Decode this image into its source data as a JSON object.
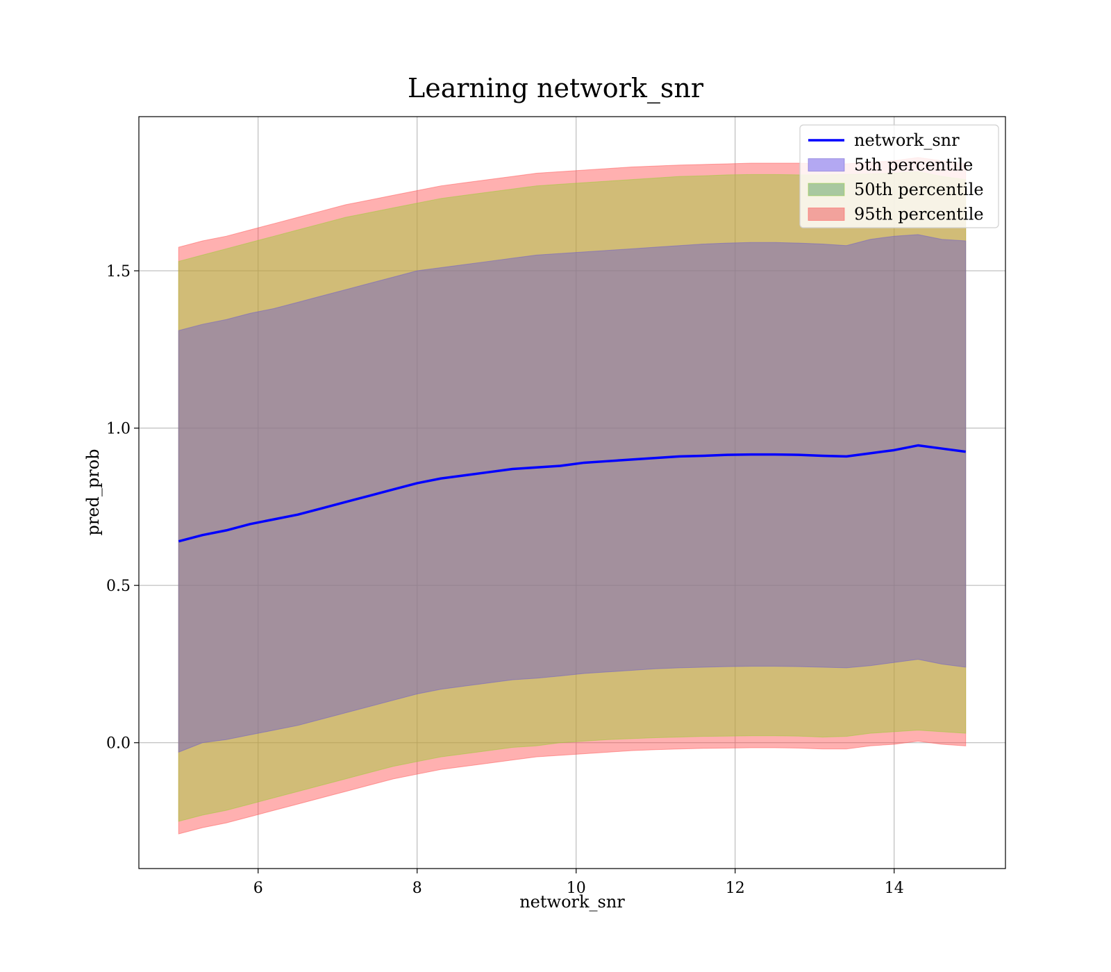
{
  "chart_data": {
    "type": "area",
    "title": "Learning network_snr",
    "xlabel": "network_snr",
    "ylabel": "pred_prob",
    "xlim": [
      4.5,
      15.4
    ],
    "ylim": [
      -0.4,
      1.99
    ],
    "xticks": [
      6,
      8,
      10,
      12,
      14
    ],
    "xtick_labels": [
      "6",
      "8",
      "10",
      "12",
      "14"
    ],
    "yticks": [
      0.0,
      0.5,
      1.0,
      1.5
    ],
    "ytick_labels": [
      "0.0",
      "0.5",
      "1.0",
      "1.5"
    ],
    "grid": true,
    "legend_position": "upper right",
    "x": [
      5.0,
      5.3,
      5.6,
      5.9,
      6.2,
      6.5,
      6.8,
      7.1,
      7.4,
      7.7,
      8.0,
      8.3,
      8.6,
      8.9,
      9.2,
      9.5,
      9.8,
      10.1,
      10.4,
      10.7,
      11.0,
      11.3,
      11.6,
      11.9,
      12.2,
      12.5,
      12.8,
      13.1,
      13.4,
      13.7,
      14.0,
      14.3,
      14.6,
      14.9
    ],
    "series": [
      {
        "name": "network_snr",
        "kind": "line",
        "color": "#0000ff",
        "values": [
          0.64,
          0.66,
          0.675,
          0.695,
          0.71,
          0.725,
          0.745,
          0.765,
          0.785,
          0.805,
          0.825,
          0.84,
          0.85,
          0.86,
          0.87,
          0.875,
          0.88,
          0.89,
          0.895,
          0.9,
          0.905,
          0.91,
          0.912,
          0.915,
          0.916,
          0.916,
          0.915,
          0.912,
          0.91,
          0.92,
          0.93,
          0.945,
          0.935,
          0.925
        ]
      },
      {
        "name": "5th percentile",
        "kind": "band",
        "color": "#6a5acd",
        "legend_color": "#b3a8f2",
        "lower": [
          -0.03,
          0.0,
          0.01,
          0.025,
          0.04,
          0.055,
          0.075,
          0.095,
          0.115,
          0.135,
          0.155,
          0.17,
          0.18,
          0.19,
          0.2,
          0.205,
          0.212,
          0.22,
          0.225,
          0.23,
          0.235,
          0.238,
          0.24,
          0.242,
          0.243,
          0.243,
          0.242,
          0.24,
          0.238,
          0.245,
          0.255,
          0.265,
          0.25,
          0.24
        ],
        "upper": [
          1.31,
          1.33,
          1.345,
          1.365,
          1.38,
          1.4,
          1.42,
          1.44,
          1.46,
          1.48,
          1.5,
          1.51,
          1.52,
          1.53,
          1.54,
          1.55,
          1.555,
          1.56,
          1.565,
          1.57,
          1.575,
          1.58,
          1.585,
          1.588,
          1.59,
          1.59,
          1.588,
          1.585,
          1.58,
          1.6,
          1.61,
          1.615,
          1.6,
          1.595
        ]
      },
      {
        "name": "50th percentile",
        "kind": "band",
        "color": "#9acd32",
        "legend_color": "#a8c8a0",
        "lower": [
          -0.25,
          -0.23,
          -0.215,
          -0.195,
          -0.175,
          -0.155,
          -0.135,
          -0.115,
          -0.095,
          -0.075,
          -0.06,
          -0.045,
          -0.035,
          -0.025,
          -0.015,
          -0.01,
          0.0,
          0.005,
          0.01,
          0.013,
          0.016,
          0.018,
          0.02,
          0.021,
          0.022,
          0.022,
          0.021,
          0.018,
          0.02,
          0.03,
          0.035,
          0.04,
          0.035,
          0.03
        ],
        "upper": [
          1.53,
          1.55,
          1.57,
          1.59,
          1.61,
          1.63,
          1.65,
          1.67,
          1.685,
          1.7,
          1.715,
          1.73,
          1.74,
          1.75,
          1.76,
          1.77,
          1.775,
          1.78,
          1.785,
          1.79,
          1.795,
          1.8,
          1.802,
          1.805,
          1.806,
          1.806,
          1.805,
          1.805,
          1.806,
          1.808,
          1.81,
          1.815,
          1.8,
          1.79
        ]
      },
      {
        "name": "95th percentile",
        "kind": "band",
        "color": "#ff5050",
        "legend_color": "#f2a29c",
        "lower": [
          -0.29,
          -0.27,
          -0.255,
          -0.235,
          -0.215,
          -0.195,
          -0.175,
          -0.155,
          -0.135,
          -0.115,
          -0.1,
          -0.085,
          -0.075,
          -0.065,
          -0.055,
          -0.045,
          -0.04,
          -0.035,
          -0.03,
          -0.025,
          -0.022,
          -0.02,
          -0.018,
          -0.017,
          -0.016,
          -0.016,
          -0.017,
          -0.02,
          -0.02,
          -0.01,
          -0.005,
          0.005,
          -0.005,
          -0.01
        ],
        "upper": [
          1.575,
          1.595,
          1.61,
          1.63,
          1.65,
          1.67,
          1.69,
          1.71,
          1.725,
          1.74,
          1.755,
          1.77,
          1.78,
          1.79,
          1.8,
          1.81,
          1.815,
          1.82,
          1.825,
          1.83,
          1.833,
          1.836,
          1.838,
          1.84,
          1.842,
          1.842,
          1.842,
          1.84,
          1.84,
          1.845,
          1.85,
          1.86,
          1.85,
          1.84
        ]
      }
    ]
  }
}
